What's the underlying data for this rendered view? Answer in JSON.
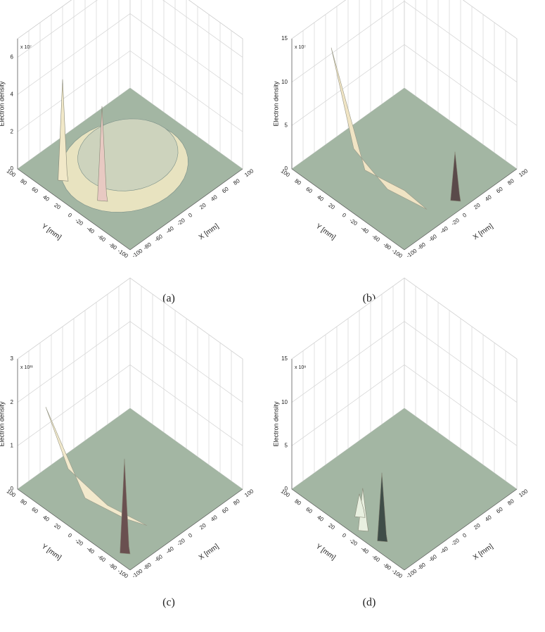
{
  "chart_data": [
    {
      "type": "surface",
      "zlabel": "Electron density",
      "zmultiplier": "x 10⁷",
      "xlabel": "X  [mm]",
      "ylabel": "Y  [mm]",
      "caption": "(a)",
      "xlim": [
        -100,
        100
      ],
      "ylim": [
        -100,
        100
      ],
      "zlim": [
        0,
        7
      ],
      "xticks": [
        -100,
        -80,
        -60,
        -40,
        -20,
        0,
        20,
        40,
        60,
        80,
        100
      ],
      "yticks": [
        -100,
        -80,
        -60,
        -40,
        -20,
        0,
        20,
        40,
        60,
        80,
        100
      ],
      "zticks": [
        0,
        2,
        4,
        6
      ],
      "grid": true,
      "floor_color": "#a3b6a3"
    },
    {
      "type": "surface",
      "zlabel": "Electron density",
      "zmultiplier": "x 10⁷",
      "xlabel": "X  [mm]",
      "ylabel": "Y  [mm]",
      "caption": "(b)",
      "xlim": [
        -100,
        100
      ],
      "ylim": [
        -100,
        100
      ],
      "zlim": [
        0,
        15
      ],
      "xticks": [
        -100,
        -80,
        -60,
        -40,
        -20,
        0,
        20,
        40,
        60,
        80,
        100
      ],
      "yticks": [
        -100,
        -80,
        -60,
        -40,
        -20,
        0,
        20,
        40,
        60,
        80,
        100
      ],
      "zticks": [
        0,
        5,
        10,
        15
      ],
      "grid": true,
      "floor_color": "#a3b6a3"
    },
    {
      "type": "surface",
      "zlabel": "Electron density",
      "zmultiplier": "x 10¹¹",
      "xlabel": "X  [mm]",
      "ylabel": "Y  [mm]",
      "caption": "(c)",
      "xlim": [
        -100,
        100
      ],
      "ylim": [
        -100,
        100
      ],
      "zlim": [
        0,
        3
      ],
      "xticks": [
        -100,
        -80,
        -60,
        -40,
        -20,
        0,
        20,
        40,
        60,
        80,
        100
      ],
      "yticks": [
        -100,
        -80,
        -60,
        -40,
        -20,
        0,
        20,
        40,
        60,
        80,
        100
      ],
      "zticks": [
        0,
        1,
        2,
        3
      ],
      "grid": true,
      "floor_color": "#a3b6a3"
    },
    {
      "type": "surface",
      "zlabel": "Electron density",
      "zmultiplier": "x 10⁸",
      "xlabel": "X  [mm]",
      "ylabel": "Y  [mm]",
      "caption": "(d)",
      "xlim": [
        -100,
        100
      ],
      "ylim": [
        -100,
        100
      ],
      "zlim": [
        0,
        15
      ],
      "xticks": [
        -100,
        -80,
        -60,
        -40,
        -20,
        0,
        20,
        40,
        60,
        80,
        100
      ],
      "yticks": [
        -100,
        -80,
        -60,
        -40,
        -20,
        0,
        20,
        40,
        60,
        80,
        100
      ],
      "zticks": [
        0,
        5,
        10,
        15
      ],
      "grid": true,
      "floor_color": "#a3b6a3"
    }
  ]
}
